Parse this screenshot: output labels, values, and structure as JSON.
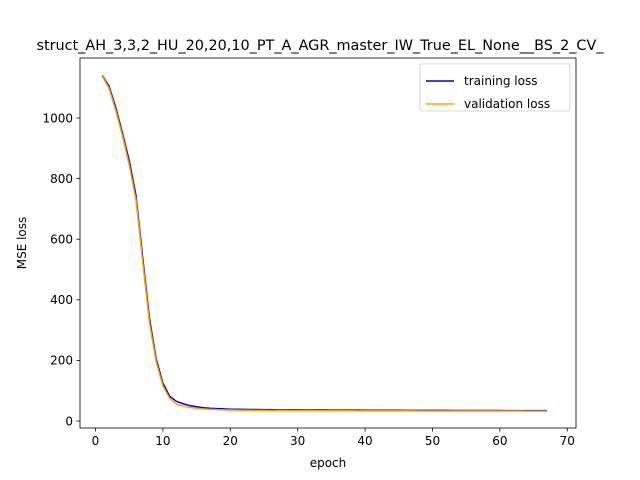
{
  "chart_data": {
    "type": "line",
    "title": "struct_AH_3,3,2_HU_20,20,10_PT_A_AGR_master_IW_True_EL_None__BS_2_CV_",
    "xlabel": "epoch",
    "ylabel": "MSE loss",
    "xlim": [
      -2.3,
      71.3
    ],
    "ylim": [
      -23,
      1198
    ],
    "xticks": [
      0,
      10,
      20,
      30,
      40,
      50,
      60,
      70
    ],
    "yticks": [
      0,
      200,
      400,
      600,
      800,
      1000
    ],
    "grid": false,
    "legend": "top-right",
    "x": [
      1,
      2,
      3,
      4,
      5,
      6,
      7,
      8,
      9,
      10,
      11,
      12,
      13,
      14,
      15,
      16,
      17,
      18,
      19,
      20,
      21,
      22,
      23,
      24,
      25,
      26,
      27,
      28,
      29,
      30,
      31,
      32,
      33,
      34,
      35,
      36,
      37,
      38,
      39,
      40,
      41,
      42,
      43,
      44,
      45,
      46,
      47,
      48,
      49,
      50,
      51,
      52,
      53,
      54,
      55,
      56,
      57,
      58,
      59,
      60,
      61,
      62,
      63,
      64,
      65,
      66,
      67
    ],
    "series": [
      {
        "name": "training loss",
        "color": "#0000cc",
        "values": [
          1140,
          1105,
          1035,
          950,
          860,
          745,
          540,
          340,
          205,
          125,
          82,
          65,
          57,
          51,
          47,
          44,
          42,
          41,
          40,
          39,
          39,
          38.5,
          38,
          38,
          37.5,
          37.5,
          37,
          37,
          37,
          37,
          36.5,
          36.5,
          36.5,
          36.5,
          36,
          36,
          36,
          36,
          36,
          35.5,
          35.5,
          35.5,
          35.5,
          35.5,
          35.5,
          35,
          35,
          35,
          35,
          35,
          35,
          35,
          34.8,
          34.8,
          34.8,
          34.8,
          34.6,
          34.6,
          34.6,
          34.6,
          34.4,
          34.4,
          34.4,
          34.4,
          34.2,
          34.2,
          34.2
        ]
      },
      {
        "name": "validation loss",
        "color": "#ffa500",
        "values": [
          1138,
          1098,
          1025,
          940,
          845,
          730,
          525,
          325,
          195,
          116,
          75,
          56,
          49,
          45,
          42,
          40,
          38.5,
          37.5,
          37,
          36.5,
          36,
          35.5,
          35.5,
          35,
          35,
          34.8,
          34.6,
          34.6,
          34.4,
          34.4,
          34.2,
          34.2,
          34,
          34,
          34,
          33.8,
          33.8,
          33.8,
          33.6,
          33.6,
          33.6,
          33.5,
          33.5,
          33.5,
          33.4,
          33.4,
          33.4,
          33.3,
          33.3,
          33.3,
          33.2,
          33.2,
          33.2,
          33.1,
          33.1,
          33.1,
          33,
          33,
          33,
          33,
          32.9,
          32.9,
          32.9,
          32.8,
          32.8,
          32.8,
          32.8
        ]
      }
    ]
  }
}
